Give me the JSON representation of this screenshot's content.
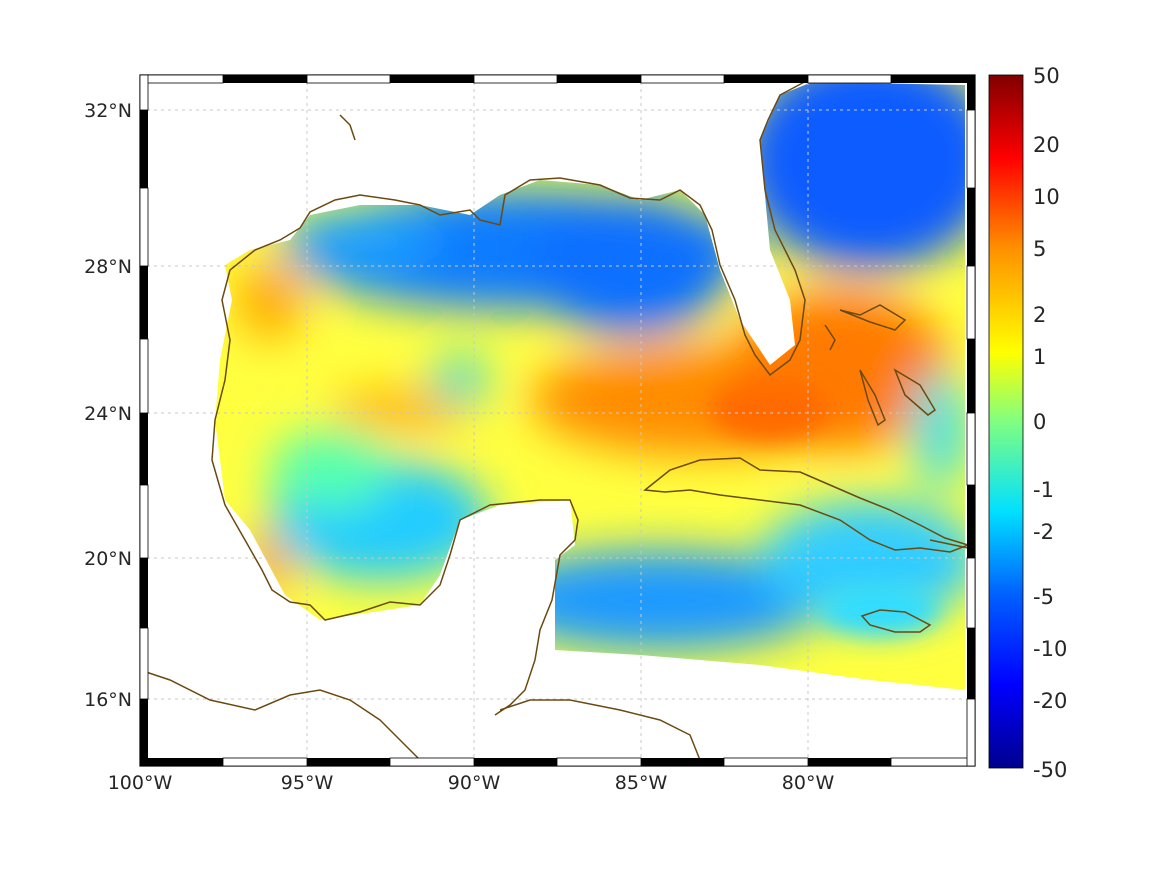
{
  "map": {
    "lat_ticks": [
      "32°N",
      "28°N",
      "24°N",
      "20°N",
      "16°N"
    ],
    "lon_ticks": [
      "100°W",
      "95°W",
      "90°W",
      "85°W",
      "80°W"
    ]
  },
  "colorbar": {
    "labels": [
      "50",
      "20",
      "10",
      "5",
      "2",
      "1",
      "0",
      "-1",
      "-2",
      "-5",
      "-10",
      "-20",
      "-50"
    ],
    "colormap": [
      "#00008f",
      "#0000ff",
      "#0080ff",
      "#00ffff",
      "#80ff80",
      "#ffff00",
      "#ff8000",
      "#ff0000",
      "#800000"
    ]
  },
  "colors": {
    "coastline": "#6b4a10",
    "grid": "#bfbfbf",
    "frame": "#000000"
  }
}
